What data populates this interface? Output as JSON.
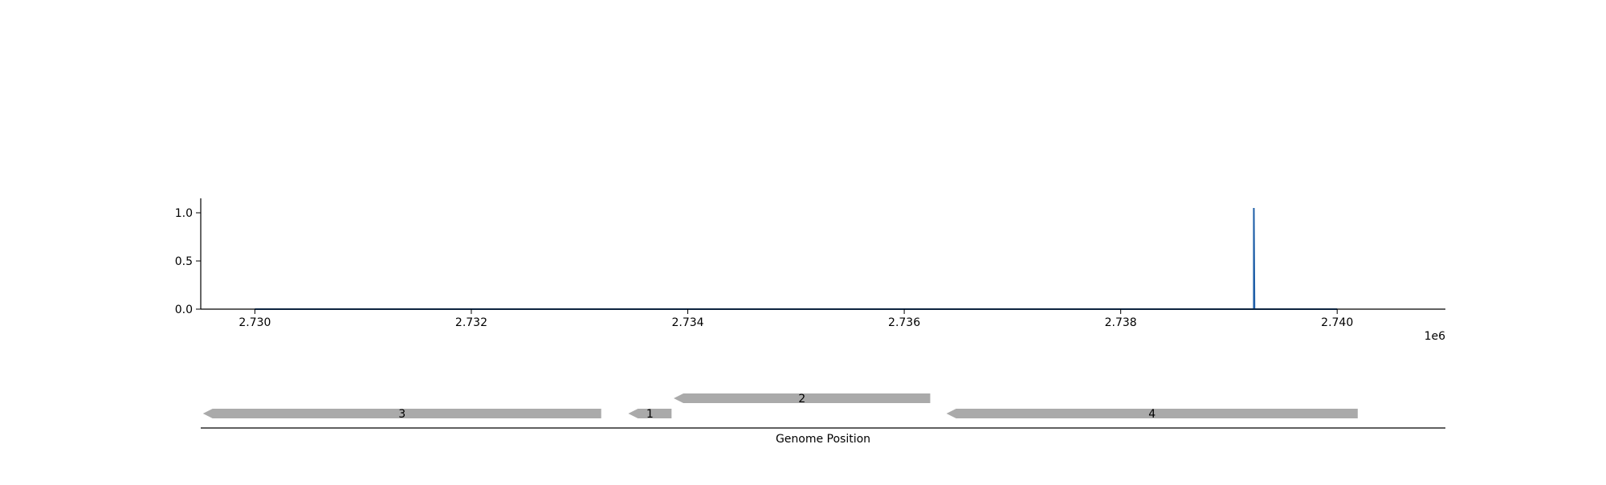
{
  "chart_data": {
    "type": "line",
    "title": "",
    "xlabel": "Genome Position",
    "ylabel": "",
    "x_offset_label": "1e6",
    "x_scale": 1000000,
    "xlim": [
      2729500,
      2741000
    ],
    "ylim": [
      0,
      1.15
    ],
    "x_ticks": [
      2730000,
      2732000,
      2734000,
      2736000,
      2738000,
      2740000
    ],
    "x_tick_labels": [
      "2.730",
      "2.732",
      "2.734",
      "2.736",
      "2.738",
      "2.740"
    ],
    "y_ticks": [
      0,
      0.5,
      1.0
    ],
    "y_tick_labels": [
      "0.0",
      "0.5",
      "1.0"
    ],
    "grid": false,
    "series": [
      {
        "color": "#1f5fa8",
        "x_range": [
          2730000,
          2740000
        ],
        "baseline": 0,
        "peaks": [
          {
            "x": 2739230,
            "y": 1.05
          }
        ]
      }
    ],
    "genes": [
      {
        "label": "3",
        "start": 2729520,
        "end": 2733200,
        "strand": "-",
        "row": 0
      },
      {
        "label": "1",
        "start": 2733450,
        "end": 2733850,
        "strand": "-",
        "row": 0
      },
      {
        "label": "2",
        "start": 2733870,
        "end": 2736240,
        "strand": "-",
        "row": 1
      },
      {
        "label": "4",
        "start": 2736390,
        "end": 2740190,
        "strand": "-",
        "row": 0
      }
    ],
    "gene_color": "#aaaaaa"
  }
}
